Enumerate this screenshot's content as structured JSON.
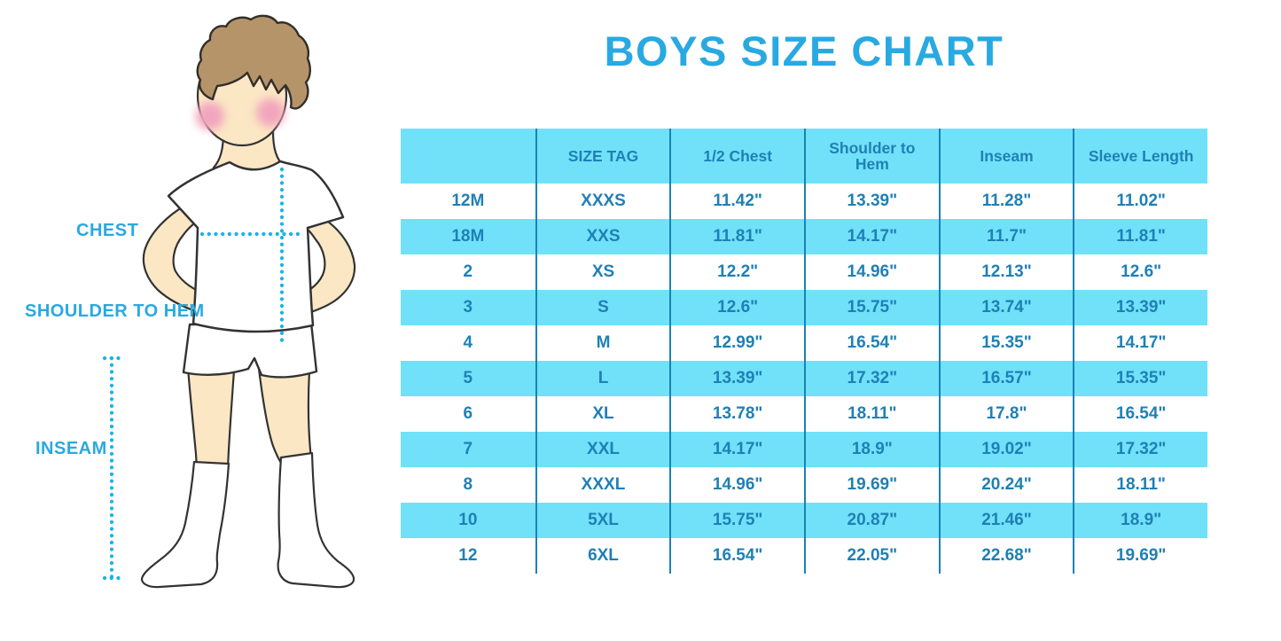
{
  "title": "BOYS SIZE CHART",
  "figure": {
    "labels": {
      "chest": "CHEST",
      "shoulder_to_hem": "SHOULDER TO HEM",
      "inseam": "INSEAM"
    }
  },
  "chart_data": {
    "type": "table",
    "title": "BOYS SIZE CHART",
    "columns": [
      "",
      "SIZE TAG",
      "1/2 Chest",
      "Shoulder to Hem",
      "Inseam",
      "Sleeve Length"
    ],
    "rows": [
      [
        "12M",
        "XXXS",
        "11.42\"",
        "13.39\"",
        "11.28\"",
        "11.02\""
      ],
      [
        "18M",
        "XXS",
        "11.81\"",
        "14.17\"",
        "11.7\"",
        "11.81\""
      ],
      [
        "2",
        "XS",
        "12.2\"",
        "14.96\"",
        "12.13\"",
        "12.6\""
      ],
      [
        "3",
        "S",
        "12.6\"",
        "15.75\"",
        "13.74\"",
        "13.39\""
      ],
      [
        "4",
        "M",
        "12.99\"",
        "16.54\"",
        "15.35\"",
        "14.17\""
      ],
      [
        "5",
        "L",
        "13.39\"",
        "17.32\"",
        "16.57\"",
        "15.35\""
      ],
      [
        "6",
        "XL",
        "13.78\"",
        "18.11\"",
        "17.8\"",
        "16.54\""
      ],
      [
        "7",
        "XXL",
        "14.17\"",
        "18.9\"",
        "19.02\"",
        "17.32\""
      ],
      [
        "8",
        "XXXL",
        "14.96\"",
        "19.69\"",
        "20.24\"",
        "18.11\""
      ],
      [
        "10",
        "5XL",
        "15.75\"",
        "20.87\"",
        "21.46\"",
        "18.9\""
      ],
      [
        "12",
        "6XL",
        "16.54\"",
        "22.05\"",
        "22.68\"",
        "19.69\""
      ]
    ],
    "units": "inches",
    "layout": {
      "striped_rows": true,
      "stripe_color": "#71E1FA",
      "divider_color": "#1A82B6"
    }
  },
  "colors": {
    "accent": "#29A9E1",
    "stripe": "#71E1FA",
    "divider": "#1A82B6",
    "tabletext": "#1F80B5",
    "dotted": "#1CB2E8",
    "skin": "#FBE7C4",
    "hair": "#B6946A",
    "blush": "#F2A6BE"
  }
}
